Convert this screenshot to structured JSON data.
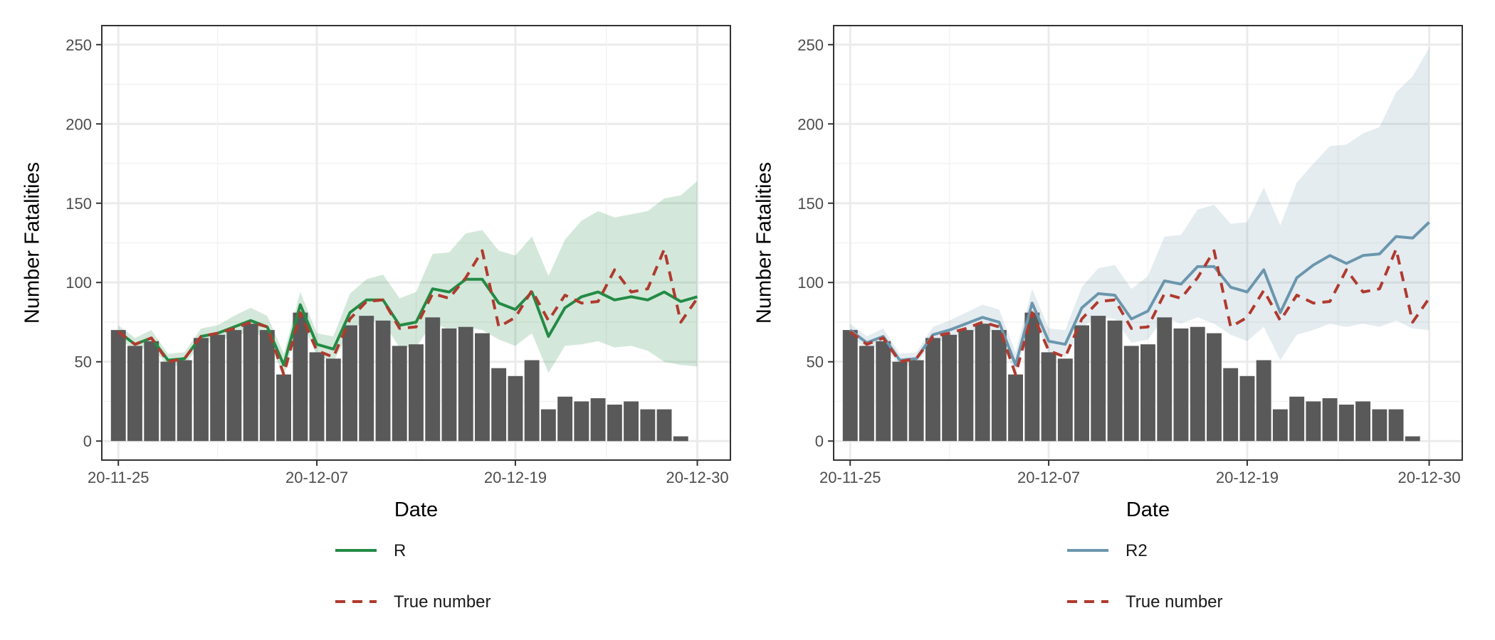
{
  "chart_data": [
    {
      "type": "bar",
      "xlabel": "Date",
      "ylabel": "Number Fatalities",
      "x_ticks": [
        "20-11-25",
        "20-12-07",
        "20-12-19",
        "20-12-30"
      ],
      "y_ticks": [
        0,
        50,
        100,
        150,
        200,
        250
      ],
      "ylim": [
        -12,
        262
      ],
      "xlim": [
        "2020-11-24",
        "2021-01-01"
      ],
      "grid": true,
      "legend_position": "bottom",
      "dates": [
        "2020-11-25",
        "2020-11-26",
        "2020-11-27",
        "2020-11-28",
        "2020-11-29",
        "2020-11-30",
        "2020-12-01",
        "2020-12-02",
        "2020-12-03",
        "2020-12-04",
        "2020-12-05",
        "2020-12-06",
        "2020-12-07",
        "2020-12-08",
        "2020-12-09",
        "2020-12-10",
        "2020-12-11",
        "2020-12-12",
        "2020-12-13",
        "2020-12-14",
        "2020-12-15",
        "2020-12-16",
        "2020-12-17",
        "2020-12-18",
        "2020-12-19",
        "2020-12-20",
        "2020-12-21",
        "2020-12-22",
        "2020-12-23",
        "2020-12-24",
        "2020-12-25",
        "2020-12-26",
        "2020-12-27",
        "2020-12-28",
        "2020-12-29",
        "2020-12-30"
      ],
      "bars": [
        70,
        60,
        63,
        50,
        51,
        65,
        67,
        70,
        74,
        70,
        42,
        81,
        56,
        52,
        73,
        79,
        76,
        60,
        61,
        78,
        71,
        72,
        68,
        46,
        41,
        51,
        20,
        28,
        25,
        27,
        23,
        25,
        20,
        20,
        3,
        0
      ],
      "series": [
        {
          "name": "R",
          "kind": "line",
          "color": "#238b45",
          "values": [
            69,
            61,
            65,
            51,
            52,
            66,
            68,
            72,
            76,
            72,
            48,
            86,
            61,
            58,
            81,
            89,
            89,
            73,
            75,
            96,
            94,
            102,
            102,
            87,
            83,
            94,
            66,
            84,
            91,
            94,
            89,
            91,
            89,
            94,
            88,
            91
          ],
          "band_lower": [
            65,
            57,
            60,
            47,
            48,
            61,
            63,
            66,
            69,
            65,
            41,
            78,
            54,
            50,
            70,
            76,
            75,
            59,
            59,
            75,
            70,
            72,
            70,
            64,
            60,
            68,
            43,
            60,
            61,
            63,
            59,
            60,
            57,
            50,
            48,
            47
          ],
          "band_upper": [
            73,
            65,
            70,
            55,
            56,
            71,
            73,
            79,
            84,
            79,
            55,
            94,
            68,
            66,
            93,
            102,
            105,
            90,
            94,
            118,
            119,
            131,
            133,
            120,
            117,
            129,
            104,
            127,
            139,
            145,
            141,
            143,
            145,
            153,
            155,
            164
          ]
        },
        {
          "name": "True number",
          "kind": "dashed-line",
          "color": "#b03a2e",
          "values": [
            69,
            61,
            65,
            50,
            52,
            66,
            68,
            71,
            75,
            72,
            42,
            81,
            57,
            53,
            77,
            88,
            89,
            71,
            72,
            93,
            90,
            103,
            120,
            72,
            78,
            95,
            76,
            92,
            87,
            88,
            108,
            94,
            96,
            121,
            75,
            90
          ]
        }
      ]
    },
    {
      "type": "bar",
      "xlabel": "Date",
      "ylabel": "Number Fatalities",
      "x_ticks": [
        "20-11-25",
        "20-12-07",
        "20-12-19",
        "20-12-30"
      ],
      "y_ticks": [
        0,
        50,
        100,
        150,
        200,
        250
      ],
      "ylim": [
        -12,
        262
      ],
      "xlim": [
        "2020-11-24",
        "2021-01-01"
      ],
      "grid": true,
      "legend_position": "bottom",
      "dates": [
        "2020-11-25",
        "2020-11-26",
        "2020-11-27",
        "2020-11-28",
        "2020-11-29",
        "2020-11-30",
        "2020-12-01",
        "2020-12-02",
        "2020-12-03",
        "2020-12-04",
        "2020-12-05",
        "2020-12-06",
        "2020-12-07",
        "2020-12-08",
        "2020-12-09",
        "2020-12-10",
        "2020-12-11",
        "2020-12-12",
        "2020-12-13",
        "2020-12-14",
        "2020-12-15",
        "2020-12-16",
        "2020-12-17",
        "2020-12-18",
        "2020-12-19",
        "2020-12-20",
        "2020-12-21",
        "2020-12-22",
        "2020-12-23",
        "2020-12-24",
        "2020-12-25",
        "2020-12-26",
        "2020-12-27",
        "2020-12-28",
        "2020-12-29",
        "2020-12-30"
      ],
      "bars": [
        70,
        60,
        63,
        50,
        51,
        65,
        67,
        70,
        74,
        70,
        42,
        81,
        56,
        52,
        73,
        79,
        76,
        60,
        61,
        78,
        71,
        72,
        68,
        46,
        41,
        51,
        20,
        28,
        25,
        27,
        23,
        25,
        20,
        20,
        3,
        0
      ],
      "series": [
        {
          "name": "R2",
          "kind": "line",
          "color": "#6b96ad",
          "values": [
            70,
            62,
            66,
            51,
            52,
            67,
            70,
            74,
            78,
            75,
            48,
            87,
            63,
            61,
            84,
            93,
            92,
            77,
            82,
            101,
            99,
            110,
            110,
            97,
            94,
            108,
            81,
            103,
            111,
            117,
            112,
            117,
            118,
            129,
            128,
            138
          ],
          "band_lower": [
            66,
            58,
            61,
            47,
            48,
            62,
            64,
            67,
            71,
            67,
            42,
            79,
            56,
            53,
            72,
            78,
            77,
            62,
            64,
            78,
            74,
            78,
            74,
            67,
            63,
            72,
            51,
            67,
            70,
            74,
            72,
            74,
            72,
            76,
            71,
            70
          ],
          "band_upper": [
            74,
            66,
            71,
            55,
            56,
            72,
            76,
            81,
            86,
            83,
            56,
            96,
            71,
            70,
            97,
            109,
            111,
            96,
            104,
            129,
            130,
            146,
            149,
            137,
            138,
            160,
            136,
            163,
            175,
            186,
            187,
            194,
            198,
            220,
            230,
            248
          ]
        },
        {
          "name": "True number",
          "kind": "dashed-line",
          "color": "#b03a2e",
          "values": [
            69,
            61,
            65,
            50,
            52,
            66,
            68,
            71,
            75,
            72,
            42,
            81,
            57,
            53,
            77,
            88,
            89,
            71,
            72,
            93,
            90,
            103,
            120,
            72,
            78,
            95,
            76,
            92,
            87,
            88,
            108,
            94,
            96,
            121,
            75,
            90
          ]
        }
      ]
    }
  ]
}
